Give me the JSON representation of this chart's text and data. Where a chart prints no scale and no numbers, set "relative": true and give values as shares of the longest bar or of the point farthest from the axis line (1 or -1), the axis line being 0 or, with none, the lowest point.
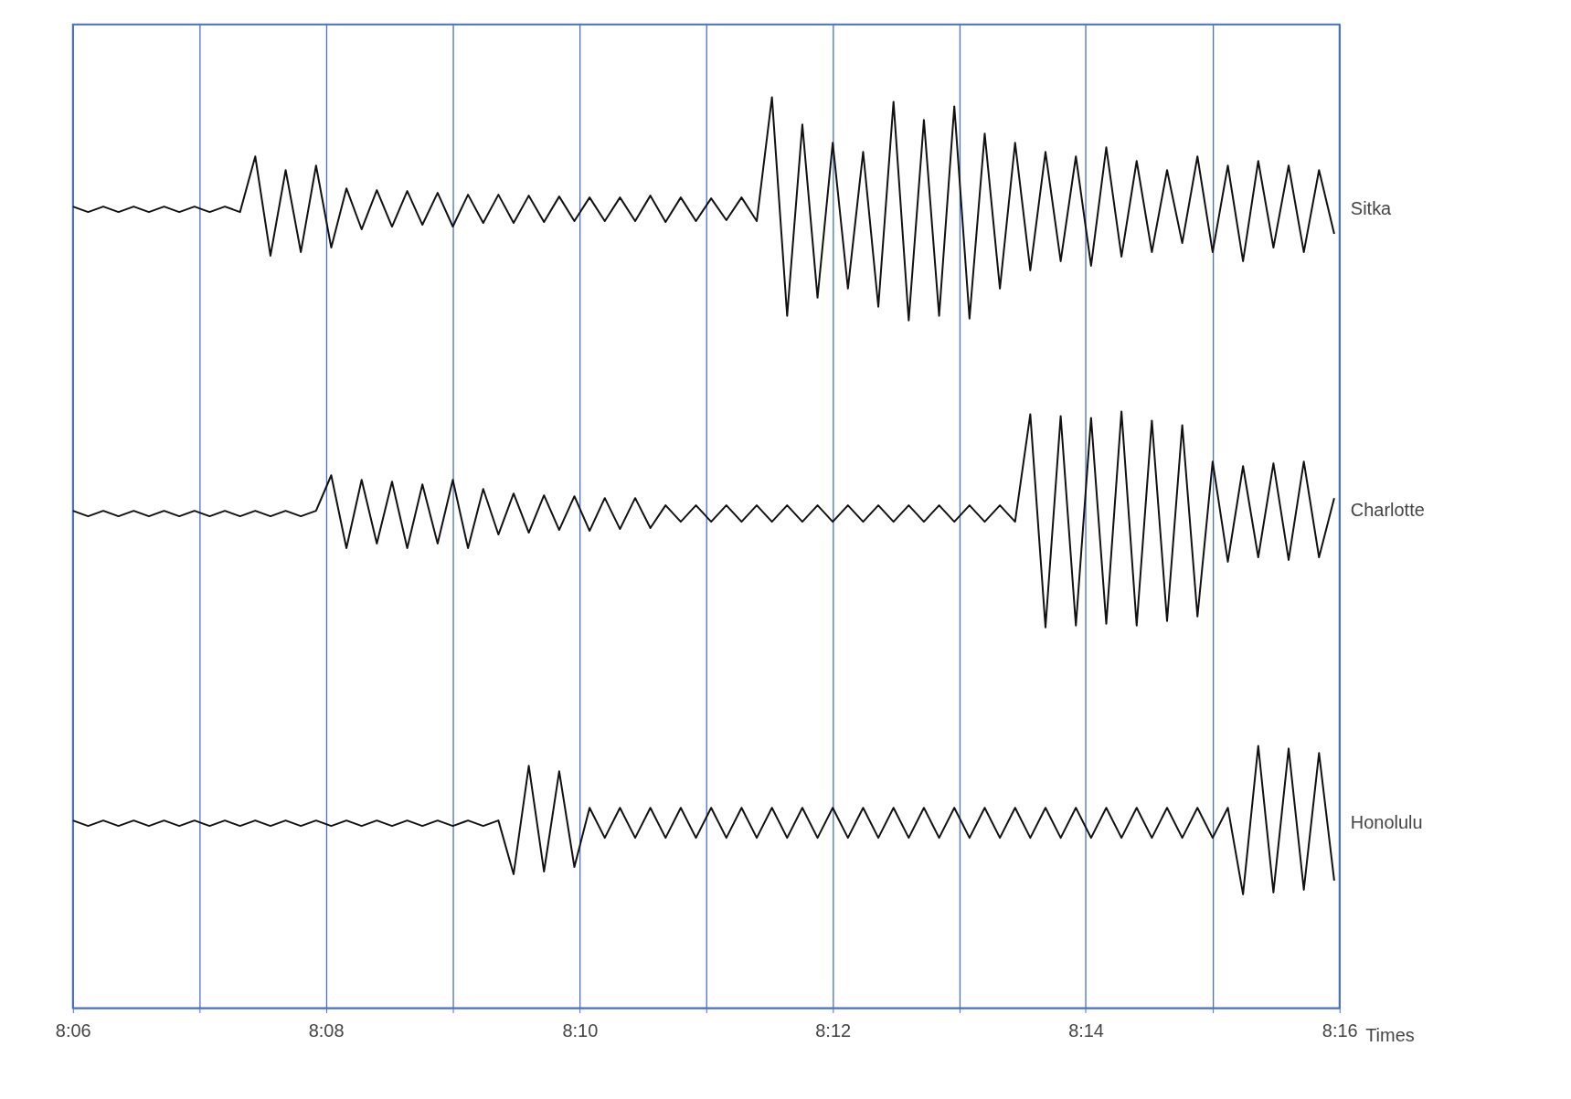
{
  "chart_data": {
    "type": "line",
    "relative": true,
    "xlabel": "Times",
    "grid": "x",
    "legend": false,
    "xlim": [
      8.1,
      8.2667
    ],
    "xticks": [
      {
        "value": 8.1,
        "label": "8:06"
      },
      {
        "value": 8.1167,
        "label": null
      },
      {
        "value": 8.1333,
        "label": "8:08"
      },
      {
        "value": 8.15,
        "label": null
      },
      {
        "value": 8.1667,
        "label": "8:10"
      },
      {
        "value": 8.1833,
        "label": null
      },
      {
        "value": 8.2,
        "label": "8:12"
      },
      {
        "value": 8.2167,
        "label": null
      },
      {
        "value": 8.2333,
        "label": "8:14"
      },
      {
        "value": 8.25,
        "label": null
      },
      {
        "value": 8.2667,
        "label": "8:16"
      }
    ],
    "x": [
      8.1,
      8.102,
      8.104,
      8.106,
      8.108,
      8.11,
      8.112,
      8.114,
      8.116,
      8.118,
      8.12,
      8.122,
      8.124,
      8.126,
      8.128,
      8.13,
      8.132,
      8.134,
      8.136,
      8.138,
      8.14,
      8.142,
      8.144,
      8.146,
      8.148,
      8.15,
      8.152,
      8.154,
      8.156,
      8.158,
      8.16,
      8.162,
      8.164,
      8.166,
      8.168,
      8.17,
      8.172,
      8.174,
      8.176,
      8.178,
      8.18,
      8.182,
      8.184,
      8.186,
      8.188,
      8.19,
      8.192,
      8.194,
      8.196,
      8.198,
      8.2,
      8.202,
      8.204,
      8.206,
      8.208,
      8.21,
      8.212,
      8.214,
      8.216,
      8.218,
      8.22,
      8.222,
      8.224,
      8.226,
      8.228,
      8.23,
      8.232,
      8.234,
      8.236,
      8.238,
      8.24,
      8.242,
      8.244,
      8.246,
      8.248,
      8.25,
      8.252,
      8.254,
      8.256,
      8.258,
      8.26,
      8.262,
      8.264,
      8.266
    ],
    "series": [
      {
        "name": "Sitka",
        "color": "#111111",
        "values": [
          0.88,
          0.874,
          0.88,
          0.874,
          0.88,
          0.874,
          0.88,
          0.874,
          0.88,
          0.874,
          0.88,
          0.874,
          0.935,
          0.826,
          0.92,
          0.83,
          0.925,
          0.835,
          0.9,
          0.855,
          0.898,
          0.858,
          0.897,
          0.86,
          0.895,
          0.858,
          0.893,
          0.862,
          0.893,
          0.862,
          0.892,
          0.863,
          0.891,
          0.864,
          0.89,
          0.864,
          0.89,
          0.864,
          0.892,
          0.863,
          0.89,
          0.864,
          0.889,
          0.865,
          0.89,
          0.864,
          1.0,
          0.76,
          0.97,
          0.78,
          0.95,
          0.79,
          0.94,
          0.77,
          0.995,
          0.755,
          0.975,
          0.76,
          0.99,
          0.757,
          0.96,
          0.79,
          0.95,
          0.81,
          0.94,
          0.82,
          0.935,
          0.815,
          0.945,
          0.825,
          0.93,
          0.83,
          0.92,
          0.84,
          0.935,
          0.83,
          0.925,
          0.82,
          0.93,
          0.835,
          0.925,
          0.83,
          0.92,
          0.85
        ]
      },
      {
        "name": "Charlotte",
        "color": "#111111",
        "values": [
          0.546,
          0.54,
          0.546,
          0.54,
          0.546,
          0.54,
          0.546,
          0.54,
          0.546,
          0.54,
          0.546,
          0.54,
          0.546,
          0.54,
          0.546,
          0.54,
          0.546,
          0.585,
          0.505,
          0.58,
          0.51,
          0.578,
          0.505,
          0.575,
          0.51,
          0.58,
          0.505,
          0.57,
          0.52,
          0.565,
          0.522,
          0.563,
          0.525,
          0.562,
          0.524,
          0.56,
          0.526,
          0.56,
          0.527,
          0.552,
          0.534,
          0.552,
          0.534,
          0.552,
          0.534,
          0.552,
          0.534,
          0.552,
          0.534,
          0.552,
          0.534,
          0.552,
          0.534,
          0.552,
          0.534,
          0.552,
          0.534,
          0.552,
          0.534,
          0.552,
          0.534,
          0.552,
          0.534,
          0.652,
          0.418,
          0.65,
          0.42,
          0.648,
          0.422,
          0.655,
          0.42,
          0.645,
          0.425,
          0.64,
          0.43,
          0.6,
          0.49,
          0.595,
          0.495,
          0.598,
          0.492,
          0.6,
          0.495,
          0.56
        ]
      },
      {
        "name": "Honolulu",
        "color": "#111111",
        "values": [
          0.206,
          0.2,
          0.206,
          0.2,
          0.206,
          0.2,
          0.206,
          0.2,
          0.206,
          0.2,
          0.206,
          0.2,
          0.206,
          0.2,
          0.206,
          0.2,
          0.206,
          0.2,
          0.206,
          0.2,
          0.206,
          0.2,
          0.206,
          0.2,
          0.206,
          0.2,
          0.206,
          0.2,
          0.206,
          0.147,
          0.266,
          0.15,
          0.26,
          0.155,
          0.22,
          0.187,
          0.22,
          0.187,
          0.22,
          0.187,
          0.22,
          0.187,
          0.22,
          0.187,
          0.22,
          0.187,
          0.22,
          0.187,
          0.22,
          0.187,
          0.22,
          0.187,
          0.22,
          0.187,
          0.22,
          0.187,
          0.22,
          0.187,
          0.22,
          0.187,
          0.22,
          0.187,
          0.22,
          0.187,
          0.22,
          0.187,
          0.22,
          0.187,
          0.22,
          0.187,
          0.22,
          0.187,
          0.22,
          0.187,
          0.22,
          0.187,
          0.22,
          0.125,
          0.288,
          0.127,
          0.285,
          0.13,
          0.28,
          0.14
        ]
      }
    ]
  }
}
